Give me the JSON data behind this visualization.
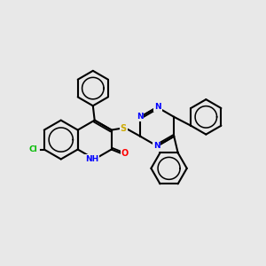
{
  "bg_color": "#e8e8e8",
  "bond_color": "#000000",
  "bond_width": 1.5,
  "atom_colors": {
    "N": "#0000ff",
    "O": "#ff0000",
    "S": "#ccaa00",
    "Cl": "#00bb00",
    "NH": "#0000ff"
  },
  "figsize": [
    3.0,
    3.0
  ],
  "dpi": 100
}
